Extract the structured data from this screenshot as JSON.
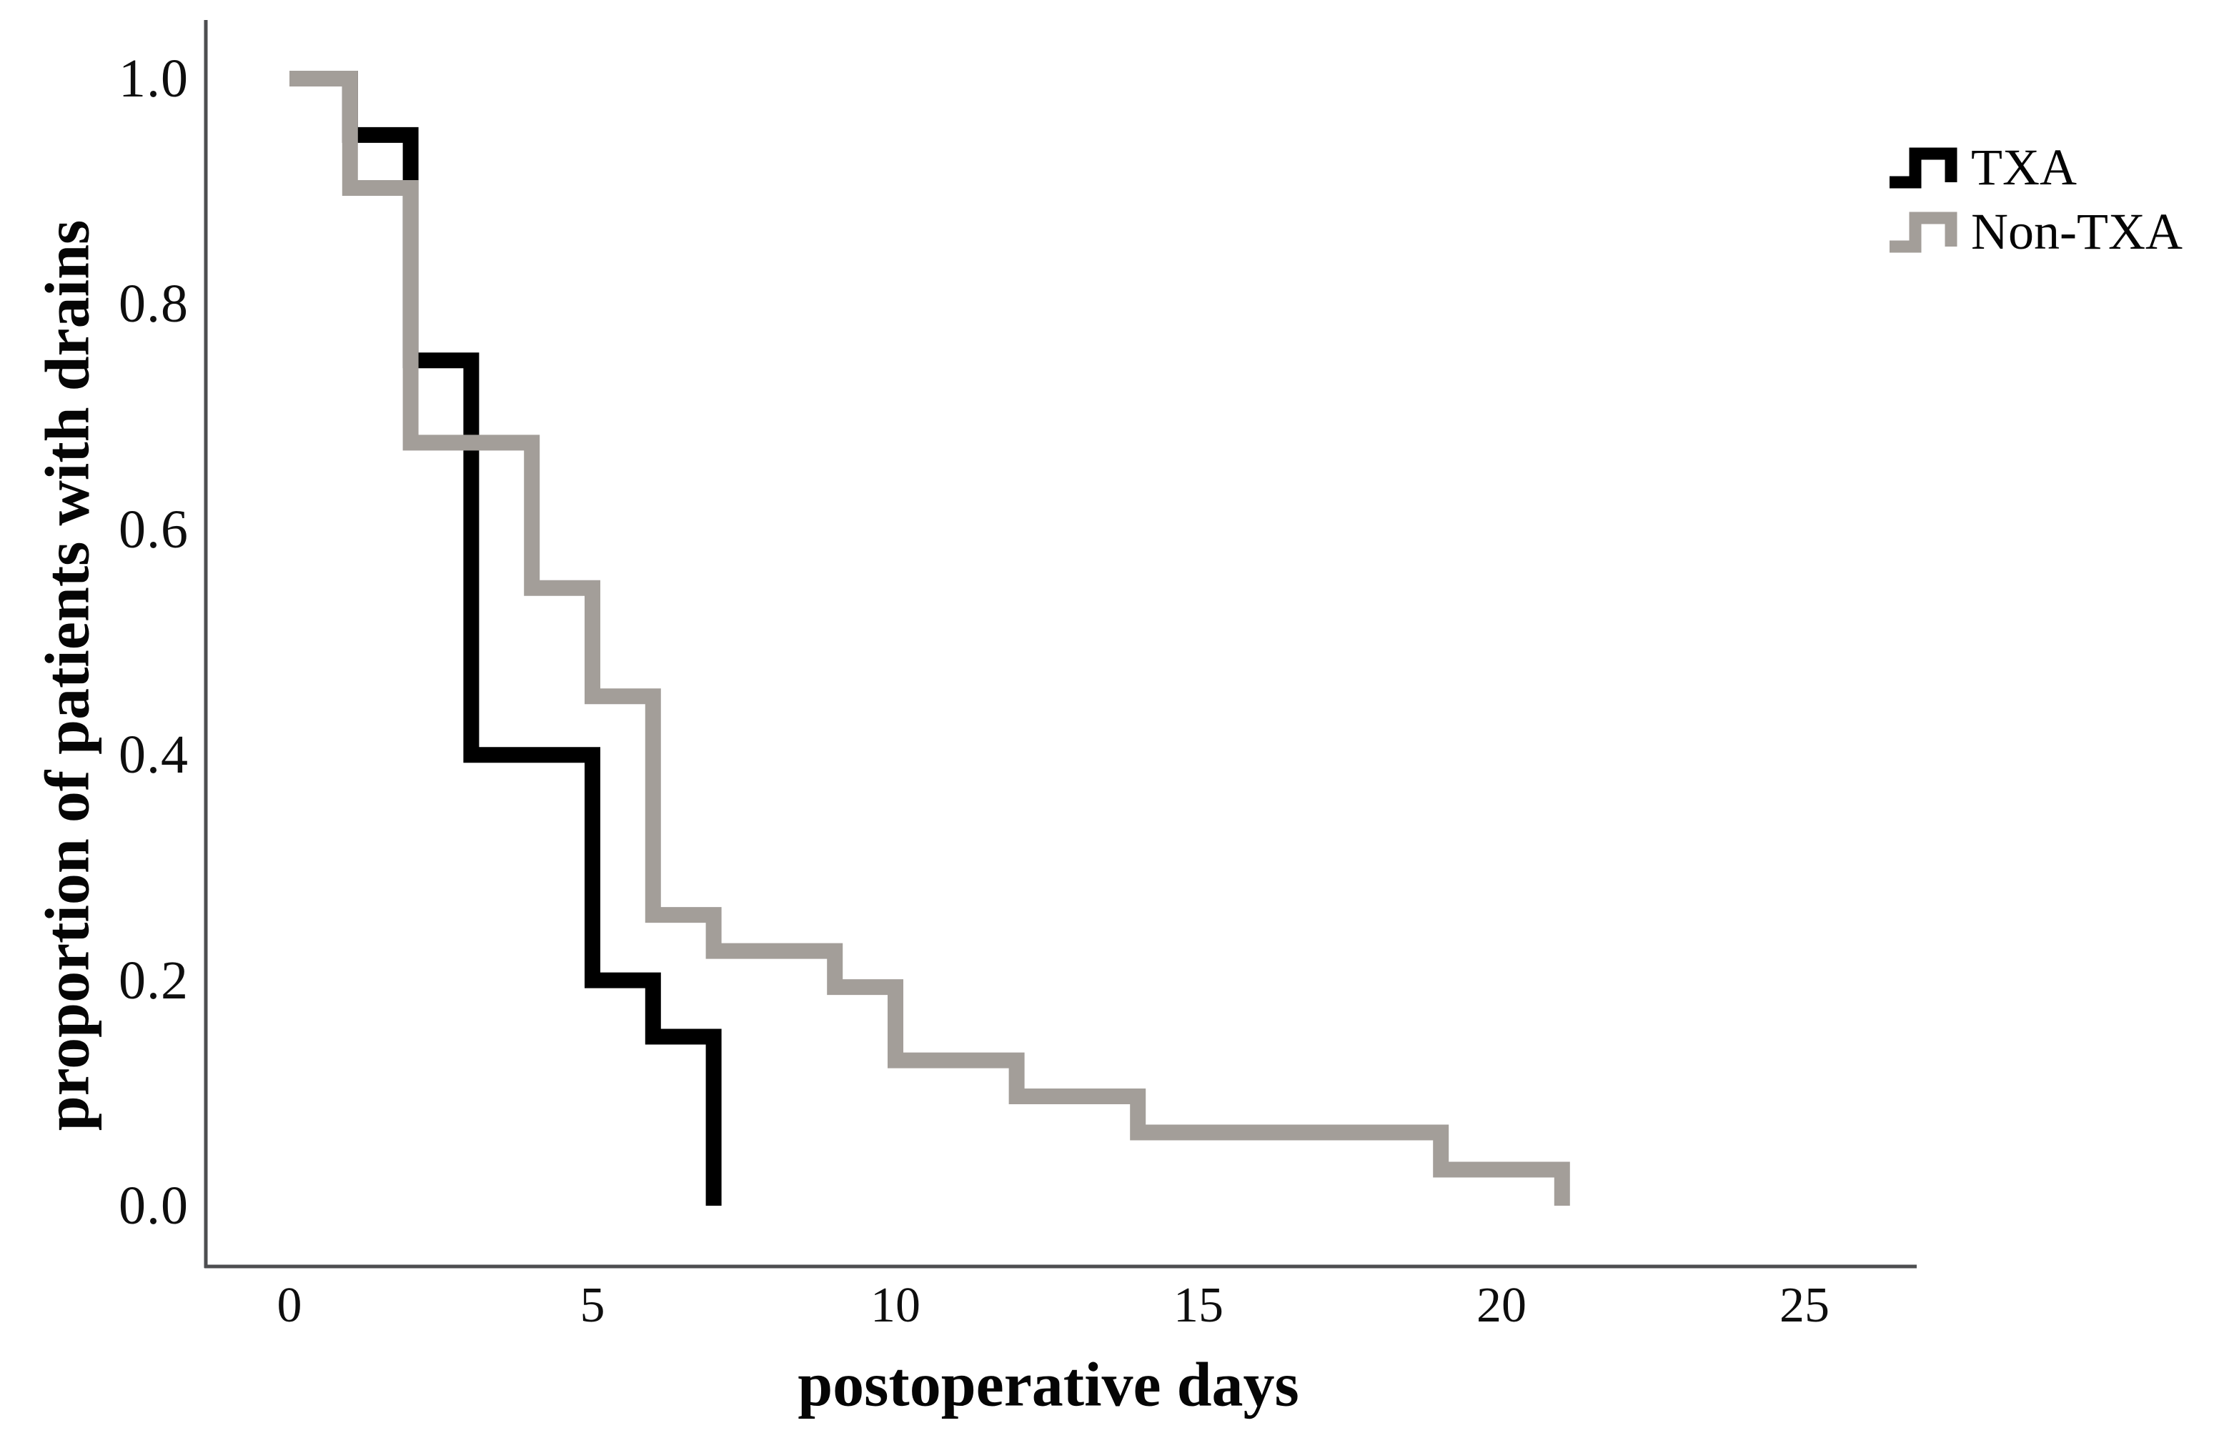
{
  "chart_data": {
    "type": "line",
    "subtype": "kaplan_meier_step",
    "title": "",
    "xlabel": "postoperative days",
    "ylabel": "proportion of patients with drains",
    "x_ticks": {
      "values": [
        0,
        5,
        10,
        15,
        20,
        25
      ],
      "labels": [
        "0",
        "5",
        "10",
        "15",
        "20",
        "25"
      ]
    },
    "y_ticks": {
      "values": [
        0.0,
        0.2,
        0.4,
        0.6,
        0.8,
        1.0
      ],
      "labels": [
        "0.0",
        "0.2",
        "0.4",
        "0.6",
        "0.8",
        "1.0"
      ]
    },
    "xlim": [
      0,
      25
    ],
    "ylim": [
      0.0,
      1.0
    ],
    "grid": false,
    "legend_position": "top-right",
    "series": [
      {
        "name": "TXA",
        "color": "#000000",
        "points": [
          [
            0,
            1.0
          ],
          [
            1,
            0.95
          ],
          [
            2,
            0.75
          ],
          [
            3,
            0.4
          ],
          [
            5,
            0.2
          ],
          [
            6,
            0.15
          ],
          [
            7,
            0.0
          ]
        ]
      },
      {
        "name": "Non-TXA",
        "color": "#a39e99",
        "points": [
          [
            0,
            1.0
          ],
          [
            1,
            0.903
          ],
          [
            2,
            0.677
          ],
          [
            4,
            0.548
          ],
          [
            5,
            0.452
          ],
          [
            6,
            0.258
          ],
          [
            7,
            0.226
          ],
          [
            9,
            0.194
          ],
          [
            10,
            0.129
          ],
          [
            12,
            0.097
          ],
          [
            14,
            0.065
          ],
          [
            19,
            0.032
          ],
          [
            21,
            0.0
          ]
        ]
      }
    ],
    "legend": {
      "entries": [
        {
          "label": "TXA",
          "color": "#000000"
        },
        {
          "label": "Non-TXA",
          "color": "#a39e99"
        }
      ]
    },
    "axis_color": "#4d4e50"
  }
}
